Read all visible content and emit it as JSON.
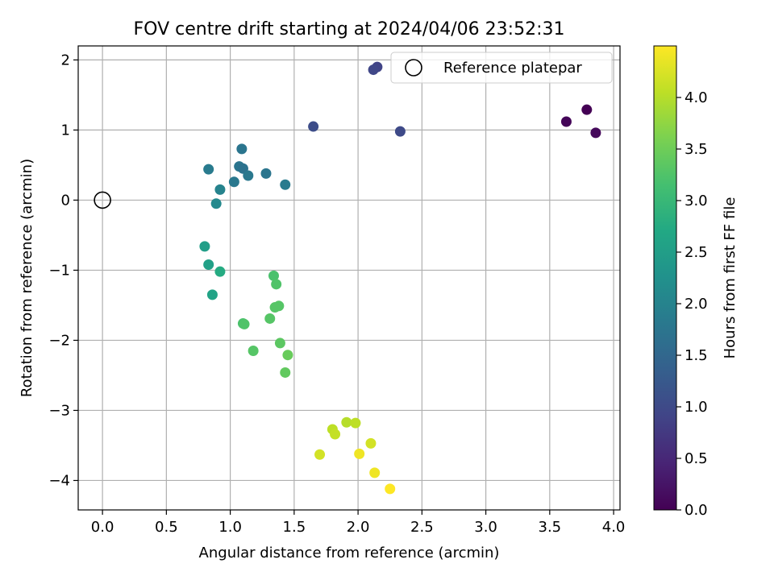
{
  "chart_data": {
    "type": "scatter",
    "title": "FOV centre drift starting at 2024/04/06 23:52:31",
    "xlabel": "Angular distance from reference (arcmin)",
    "ylabel": "Rotation from reference (arcmin)",
    "xlim": [
      -0.19,
      4.05
    ],
    "ylim": [
      -4.42,
      2.2
    ],
    "xticks": [
      "0.0",
      "0.5",
      "1.0",
      "1.5",
      "2.0",
      "2.5",
      "3.0",
      "3.5",
      "4.0"
    ],
    "yticks": [
      "2",
      "1",
      "0",
      "−1",
      "−2",
      "−3",
      "−4"
    ],
    "grid": true,
    "legend": {
      "position": "top-right",
      "entries": [
        "Reference platepar"
      ]
    },
    "reference_point": {
      "x": 0.0,
      "y": 0.0
    },
    "colorbar": {
      "label": "Hours from first FF file",
      "colormap": "viridis",
      "range": [
        0.0,
        4.5
      ],
      "ticks": [
        "0.0",
        "0.5",
        "1.0",
        "1.5",
        "2.0",
        "2.5",
        "3.0",
        "3.5",
        "4.0"
      ]
    },
    "points": [
      {
        "x": 3.79,
        "y": 1.29,
        "hours": 0.0
      },
      {
        "x": 3.63,
        "y": 1.12,
        "hours": 0.05
      },
      {
        "x": 3.86,
        "y": 0.96,
        "hours": 0.1
      },
      {
        "x": 2.15,
        "y": 1.9,
        "hours": 0.9
      },
      {
        "x": 2.12,
        "y": 1.86,
        "hours": 0.95
      },
      {
        "x": 2.33,
        "y": 0.98,
        "hours": 1.0
      },
      {
        "x": 1.65,
        "y": 1.05,
        "hours": 1.05
      },
      {
        "x": 1.09,
        "y": 0.73,
        "hours": 1.75
      },
      {
        "x": 1.07,
        "y": 0.48,
        "hours": 1.75
      },
      {
        "x": 1.1,
        "y": 0.45,
        "hours": 1.7
      },
      {
        "x": 1.14,
        "y": 0.35,
        "hours": 1.8
      },
      {
        "x": 1.28,
        "y": 0.38,
        "hours": 1.75
      },
      {
        "x": 1.03,
        "y": 0.26,
        "hours": 1.8
      },
      {
        "x": 1.43,
        "y": 0.22,
        "hours": 1.85
      },
      {
        "x": 0.83,
        "y": 0.44,
        "hours": 1.85
      },
      {
        "x": 0.92,
        "y": 0.15,
        "hours": 2.0
      },
      {
        "x": 0.89,
        "y": -0.05,
        "hours": 2.1
      },
      {
        "x": 0.8,
        "y": -0.66,
        "hours": 2.5
      },
      {
        "x": 0.83,
        "y": -0.92,
        "hours": 2.55
      },
      {
        "x": 0.92,
        "y": -1.02,
        "hours": 2.75
      },
      {
        "x": 0.86,
        "y": -1.35,
        "hours": 2.6
      },
      {
        "x": 1.34,
        "y": -1.08,
        "hours": 3.2
      },
      {
        "x": 1.36,
        "y": -1.2,
        "hours": 3.25
      },
      {
        "x": 1.35,
        "y": -1.53,
        "hours": 3.3
      },
      {
        "x": 1.38,
        "y": -1.51,
        "hours": 3.3
      },
      {
        "x": 1.31,
        "y": -1.69,
        "hours": 3.3
      },
      {
        "x": 1.1,
        "y": -1.76,
        "hours": 3.2
      },
      {
        "x": 1.11,
        "y": -1.77,
        "hours": 3.25
      },
      {
        "x": 1.18,
        "y": -2.15,
        "hours": 3.3
      },
      {
        "x": 1.39,
        "y": -2.04,
        "hours": 3.35
      },
      {
        "x": 1.45,
        "y": -2.21,
        "hours": 3.45
      },
      {
        "x": 1.43,
        "y": -2.46,
        "hours": 3.4
      },
      {
        "x": 1.8,
        "y": -3.27,
        "hours": 4.05
      },
      {
        "x": 1.82,
        "y": -3.34,
        "hours": 4.1
      },
      {
        "x": 1.91,
        "y": -3.17,
        "hours": 4.0
      },
      {
        "x": 1.98,
        "y": -3.18,
        "hours": 4.05
      },
      {
        "x": 2.1,
        "y": -3.47,
        "hours": 4.2
      },
      {
        "x": 1.7,
        "y": -3.63,
        "hours": 4.2
      },
      {
        "x": 2.01,
        "y": -3.62,
        "hours": 4.4
      },
      {
        "x": 2.13,
        "y": -3.89,
        "hours": 4.4
      },
      {
        "x": 2.25,
        "y": -4.12,
        "hours": 4.5
      }
    ]
  }
}
